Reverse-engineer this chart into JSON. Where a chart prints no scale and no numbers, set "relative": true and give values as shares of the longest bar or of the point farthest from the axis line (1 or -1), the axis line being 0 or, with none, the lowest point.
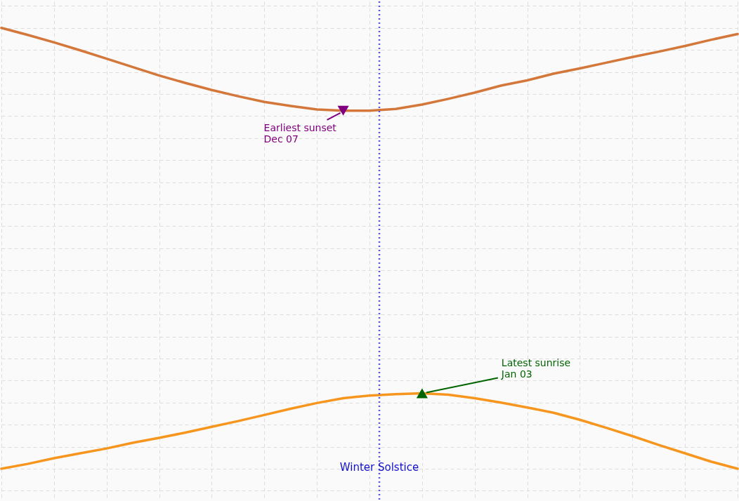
{
  "chart_data": {
    "type": "line",
    "relative": true,
    "grid": true,
    "tick_labels": false,
    "line_style": "solid",
    "categories": [
      null,
      null,
      null,
      null,
      null,
      null,
      null,
      null,
      null,
      null,
      null,
      null,
      null,
      null,
      null,
      null,
      null,
      null,
      null,
      null,
      null,
      null,
      null,
      null,
      null,
      null,
      null,
      null,
      null
    ],
    "series": [
      {
        "color": "#d4773a",
        "values": [
          1.0,
          0.984,
          0.967,
          0.949,
          0.93,
          0.911,
          0.892,
          0.875,
          0.859,
          0.845,
          0.832,
          0.823,
          0.815,
          0.812,
          0.812,
          0.816,
          0.826,
          0.839,
          0.853,
          0.869,
          0.881,
          0.896,
          0.908,
          0.921,
          0.934,
          0.946,
          0.959,
          0.973,
          0.986
        ]
      },
      {
        "color": "#f7961e",
        "values": [
          0.0,
          0.011,
          0.024,
          0.035,
          0.046,
          0.059,
          0.07,
          0.082,
          0.095,
          0.108,
          0.122,
          0.136,
          0.149,
          0.16,
          0.166,
          0.169,
          0.171,
          0.168,
          0.16,
          0.15,
          0.139,
          0.127,
          0.111,
          0.093,
          0.074,
          0.054,
          0.035,
          0.016,
          0.0
        ]
      }
    ],
    "annotations": [
      "Earliest sunset\nDec 07",
      "Latest sunrise\nJan 03",
      "Winter Solstice"
    ]
  }
}
